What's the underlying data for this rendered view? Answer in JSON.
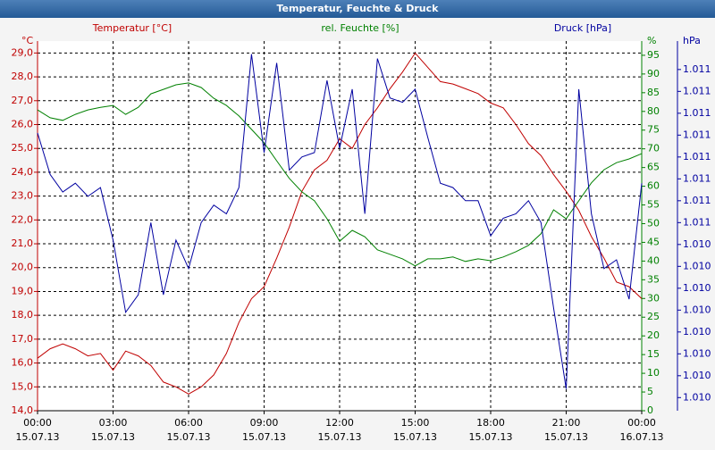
{
  "chart_data": {
    "type": "line",
    "title": "Temperatur, Feuchte & Druck",
    "y_label": "°C",
    "y2_label": "%",
    "y3_label": "hPa",
    "x": [
      0,
      0.5,
      1,
      1.5,
      2,
      2.5,
      3,
      3.5,
      4,
      4.5,
      5,
      5.5,
      6,
      6.5,
      7,
      7.5,
      8,
      8.5,
      9,
      9.5,
      10,
      10.5,
      11,
      11.5,
      12,
      12.5,
      13,
      13.5,
      14,
      14.5,
      15,
      15.5,
      16,
      16.5,
      17,
      17.5,
      18,
      18.5,
      19,
      19.5,
      20,
      20.5,
      21,
      21.5,
      22,
      22.5,
      23,
      23.5,
      24
    ],
    "xlim": [
      0,
      24
    ],
    "xticks": [
      {
        "value": 0,
        "label": "00:00",
        "sublabel": "15.07.13"
      },
      {
        "value": 3,
        "label": "03:00",
        "sublabel": "15.07.13"
      },
      {
        "value": 6,
        "label": "06:00",
        "sublabel": "15.07.13"
      },
      {
        "value": 9,
        "label": "09:00",
        "sublabel": "15.07.13"
      },
      {
        "value": 12,
        "label": "12:00",
        "sublabel": "15.07.13"
      },
      {
        "value": 15,
        "label": "15:00",
        "sublabel": "15.07.13"
      },
      {
        "value": 18,
        "label": "18:00",
        "sublabel": "15.07.13"
      },
      {
        "value": 21,
        "label": "21:00",
        "sublabel": "15.07.13"
      },
      {
        "value": 24,
        "label": "00:00",
        "sublabel": "16.07.13"
      }
    ],
    "ylim": [
      14,
      29.5
    ],
    "yticks": [
      {
        "value": 14,
        "label": "14,0"
      },
      {
        "value": 15,
        "label": "15,0"
      },
      {
        "value": 16,
        "label": "16,0"
      },
      {
        "value": 17,
        "label": "17,0"
      },
      {
        "value": 18,
        "label": "18,0"
      },
      {
        "value": 19,
        "label": "19,0"
      },
      {
        "value": 20,
        "label": "20,0"
      },
      {
        "value": 21,
        "label": "21,0"
      },
      {
        "value": 22,
        "label": "22,0"
      },
      {
        "value": 23,
        "label": "23,0"
      },
      {
        "value": 24,
        "label": "24,0"
      },
      {
        "value": 25,
        "label": "25,0"
      },
      {
        "value": 26,
        "label": "26,0"
      },
      {
        "value": 27,
        "label": "27,0"
      },
      {
        "value": 28,
        "label": "28,0"
      },
      {
        "value": 29,
        "label": "29,0"
      }
    ],
    "y2lim": [
      0,
      98.8
    ],
    "y2ticks": [
      0,
      5,
      10,
      15,
      20,
      25,
      30,
      35,
      40,
      45,
      50,
      55,
      60,
      65,
      70,
      75,
      80,
      85,
      90,
      95
    ],
    "y3lim": [
      1009.64,
      1011.33
    ],
    "y3ticks": [
      {
        "value": 1011.2,
        "label": "1.011"
      },
      {
        "value": 1011.1,
        "label": "1.011"
      },
      {
        "value": 1011.0,
        "label": "1.011"
      },
      {
        "value": 1010.9,
        "label": "1.011"
      },
      {
        "value": 1010.8,
        "label": "1.011"
      },
      {
        "value": 1010.7,
        "label": "1.011"
      },
      {
        "value": 1010.6,
        "label": "1.011"
      },
      {
        "value": 1010.5,
        "label": "1.011"
      },
      {
        "value": 1010.4,
        "label": "1.010"
      },
      {
        "value": 1010.3,
        "label": "1.010"
      },
      {
        "value": 1010.2,
        "label": "1.010"
      },
      {
        "value": 1010.1,
        "label": "1.010"
      },
      {
        "value": 1010.0,
        "label": "1.010"
      },
      {
        "value": 1009.9,
        "label": "1.010"
      },
      {
        "value": 1009.8,
        "label": "1.010"
      },
      {
        "value": 1009.7,
        "label": "1.010"
      }
    ],
    "grid": true,
    "series": [
      {
        "name": "Temperatur [°C]",
        "color": "#c00000",
        "axis": "y",
        "values": [
          16.2,
          16.6,
          16.8,
          16.6,
          16.3,
          16.4,
          15.7,
          16.5,
          16.3,
          15.9,
          15.2,
          15.0,
          14.7,
          15.0,
          15.5,
          16.4,
          17.7,
          18.7,
          19.2,
          20.4,
          21.7,
          23.2,
          24.1,
          24.5,
          25.4,
          25.0,
          26.0,
          26.7,
          27.5,
          28.2,
          29.0,
          28.4,
          27.8,
          27.7,
          27.5,
          27.3,
          26.9,
          26.7,
          26.0,
          25.2,
          24.7,
          23.9,
          23.2,
          22.4,
          21.3,
          20.4,
          19.4,
          19.2,
          18.7
        ]
      },
      {
        "name": "rel. Feuchte [%]",
        "color": "#008000",
        "axis": "y2",
        "values": [
          80.4,
          78.3,
          77.6,
          79.2,
          80.4,
          81.1,
          81.6,
          79.2,
          81.1,
          84.7,
          85.9,
          87.1,
          87.6,
          86.4,
          83.5,
          81.6,
          78.8,
          75.2,
          71.6,
          66.8,
          62.1,
          58.5,
          56.1,
          51.3,
          45.3,
          48.2,
          46.5,
          43.0,
          41.8,
          40.6,
          38.7,
          40.6,
          40.6,
          41.1,
          39.9,
          40.6,
          40.1,
          41.1,
          42.5,
          44.2,
          47.3,
          53.7,
          51.3,
          56.1,
          60.9,
          64.4,
          66.3,
          67.3,
          68.7
        ]
      },
      {
        "name": "Druck [hPa]",
        "color": "#0000a0",
        "axis": "y3",
        "values": [
          1010.91,
          1010.72,
          1010.64,
          1010.68,
          1010.62,
          1010.66,
          1010.42,
          1010.09,
          1010.17,
          1010.5,
          1010.17,
          1010.42,
          1010.29,
          1010.5,
          1010.58,
          1010.54,
          1010.66,
          1011.27,
          1010.82,
          1011.23,
          1010.74,
          1010.8,
          1010.82,
          1011.15,
          1010.84,
          1011.11,
          1010.54,
          1011.25,
          1011.07,
          1011.05,
          1011.11,
          1010.89,
          1010.68,
          1010.66,
          1010.6,
          1010.6,
          1010.44,
          1010.52,
          1010.54,
          1010.6,
          1010.5,
          1010.11,
          1009.74,
          1011.11,
          1010.54,
          1010.29,
          1010.33,
          1010.15,
          1010.68
        ]
      }
    ]
  }
}
